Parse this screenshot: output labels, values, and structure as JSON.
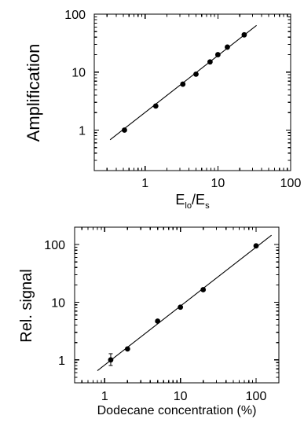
{
  "chart_data": [
    {
      "type": "scatter",
      "scale": {
        "x": "log",
        "y": "log"
      },
      "xlim": [
        0.2,
        100
      ],
      "ylim": [
        0.2,
        100
      ],
      "xlabel": {
        "main": "E",
        "sub1": "lo",
        "mid": "/E",
        "sub2": "s"
      },
      "ylabel": "Amplification",
      "x_ticks": [
        1,
        10,
        100
      ],
      "x_tick_labels": [
        "1",
        "10",
        "100"
      ],
      "y_ticks": [
        1,
        10,
        100
      ],
      "y_tick_labels": [
        "1",
        "10",
        "100"
      ],
      "series": [
        {
          "x": [
            0.52,
            1.4,
            3.3,
            5.0,
            7.8,
            10.0,
            13.5,
            23.0
          ],
          "y": [
            1.0,
            2.6,
            6.2,
            9.2,
            15.0,
            20.0,
            27.0,
            44.0
          ]
        }
      ],
      "fit_line": {
        "x": [
          0.33,
          34.0
        ],
        "y": [
          0.68,
          64.0
        ]
      },
      "grid": false,
      "legend": "none"
    },
    {
      "type": "scatter",
      "scale": {
        "x": "log",
        "y": "log"
      },
      "xlim": [
        0.4,
        200
      ],
      "ylim": [
        0.4,
        200
      ],
      "xlabel": "Dodecane concentration (%)",
      "ylabel": "Rel. signal",
      "x_ticks": [
        1,
        10,
        100
      ],
      "x_tick_labels": [
        "1",
        "10",
        "100"
      ],
      "y_ticks": [
        1,
        10,
        100
      ],
      "y_tick_labels": [
        "1",
        "10",
        "100"
      ],
      "series": [
        {
          "x": [
            1.2,
            2.0,
            5.0,
            10.0,
            20.0,
            100.0
          ],
          "y": [
            1.0,
            1.55,
            4.7,
            8.2,
            16.5,
            95.0
          ],
          "y_err_low": [
            0.8,
            null,
            null,
            null,
            null,
            null
          ],
          "y_err_high": [
            1.28,
            null,
            null,
            null,
            null,
            null
          ]
        }
      ],
      "fit_line": {
        "x": [
          0.8,
          160.0
        ],
        "y": [
          0.65,
          145.0
        ]
      },
      "grid": false,
      "legend": "none"
    }
  ]
}
